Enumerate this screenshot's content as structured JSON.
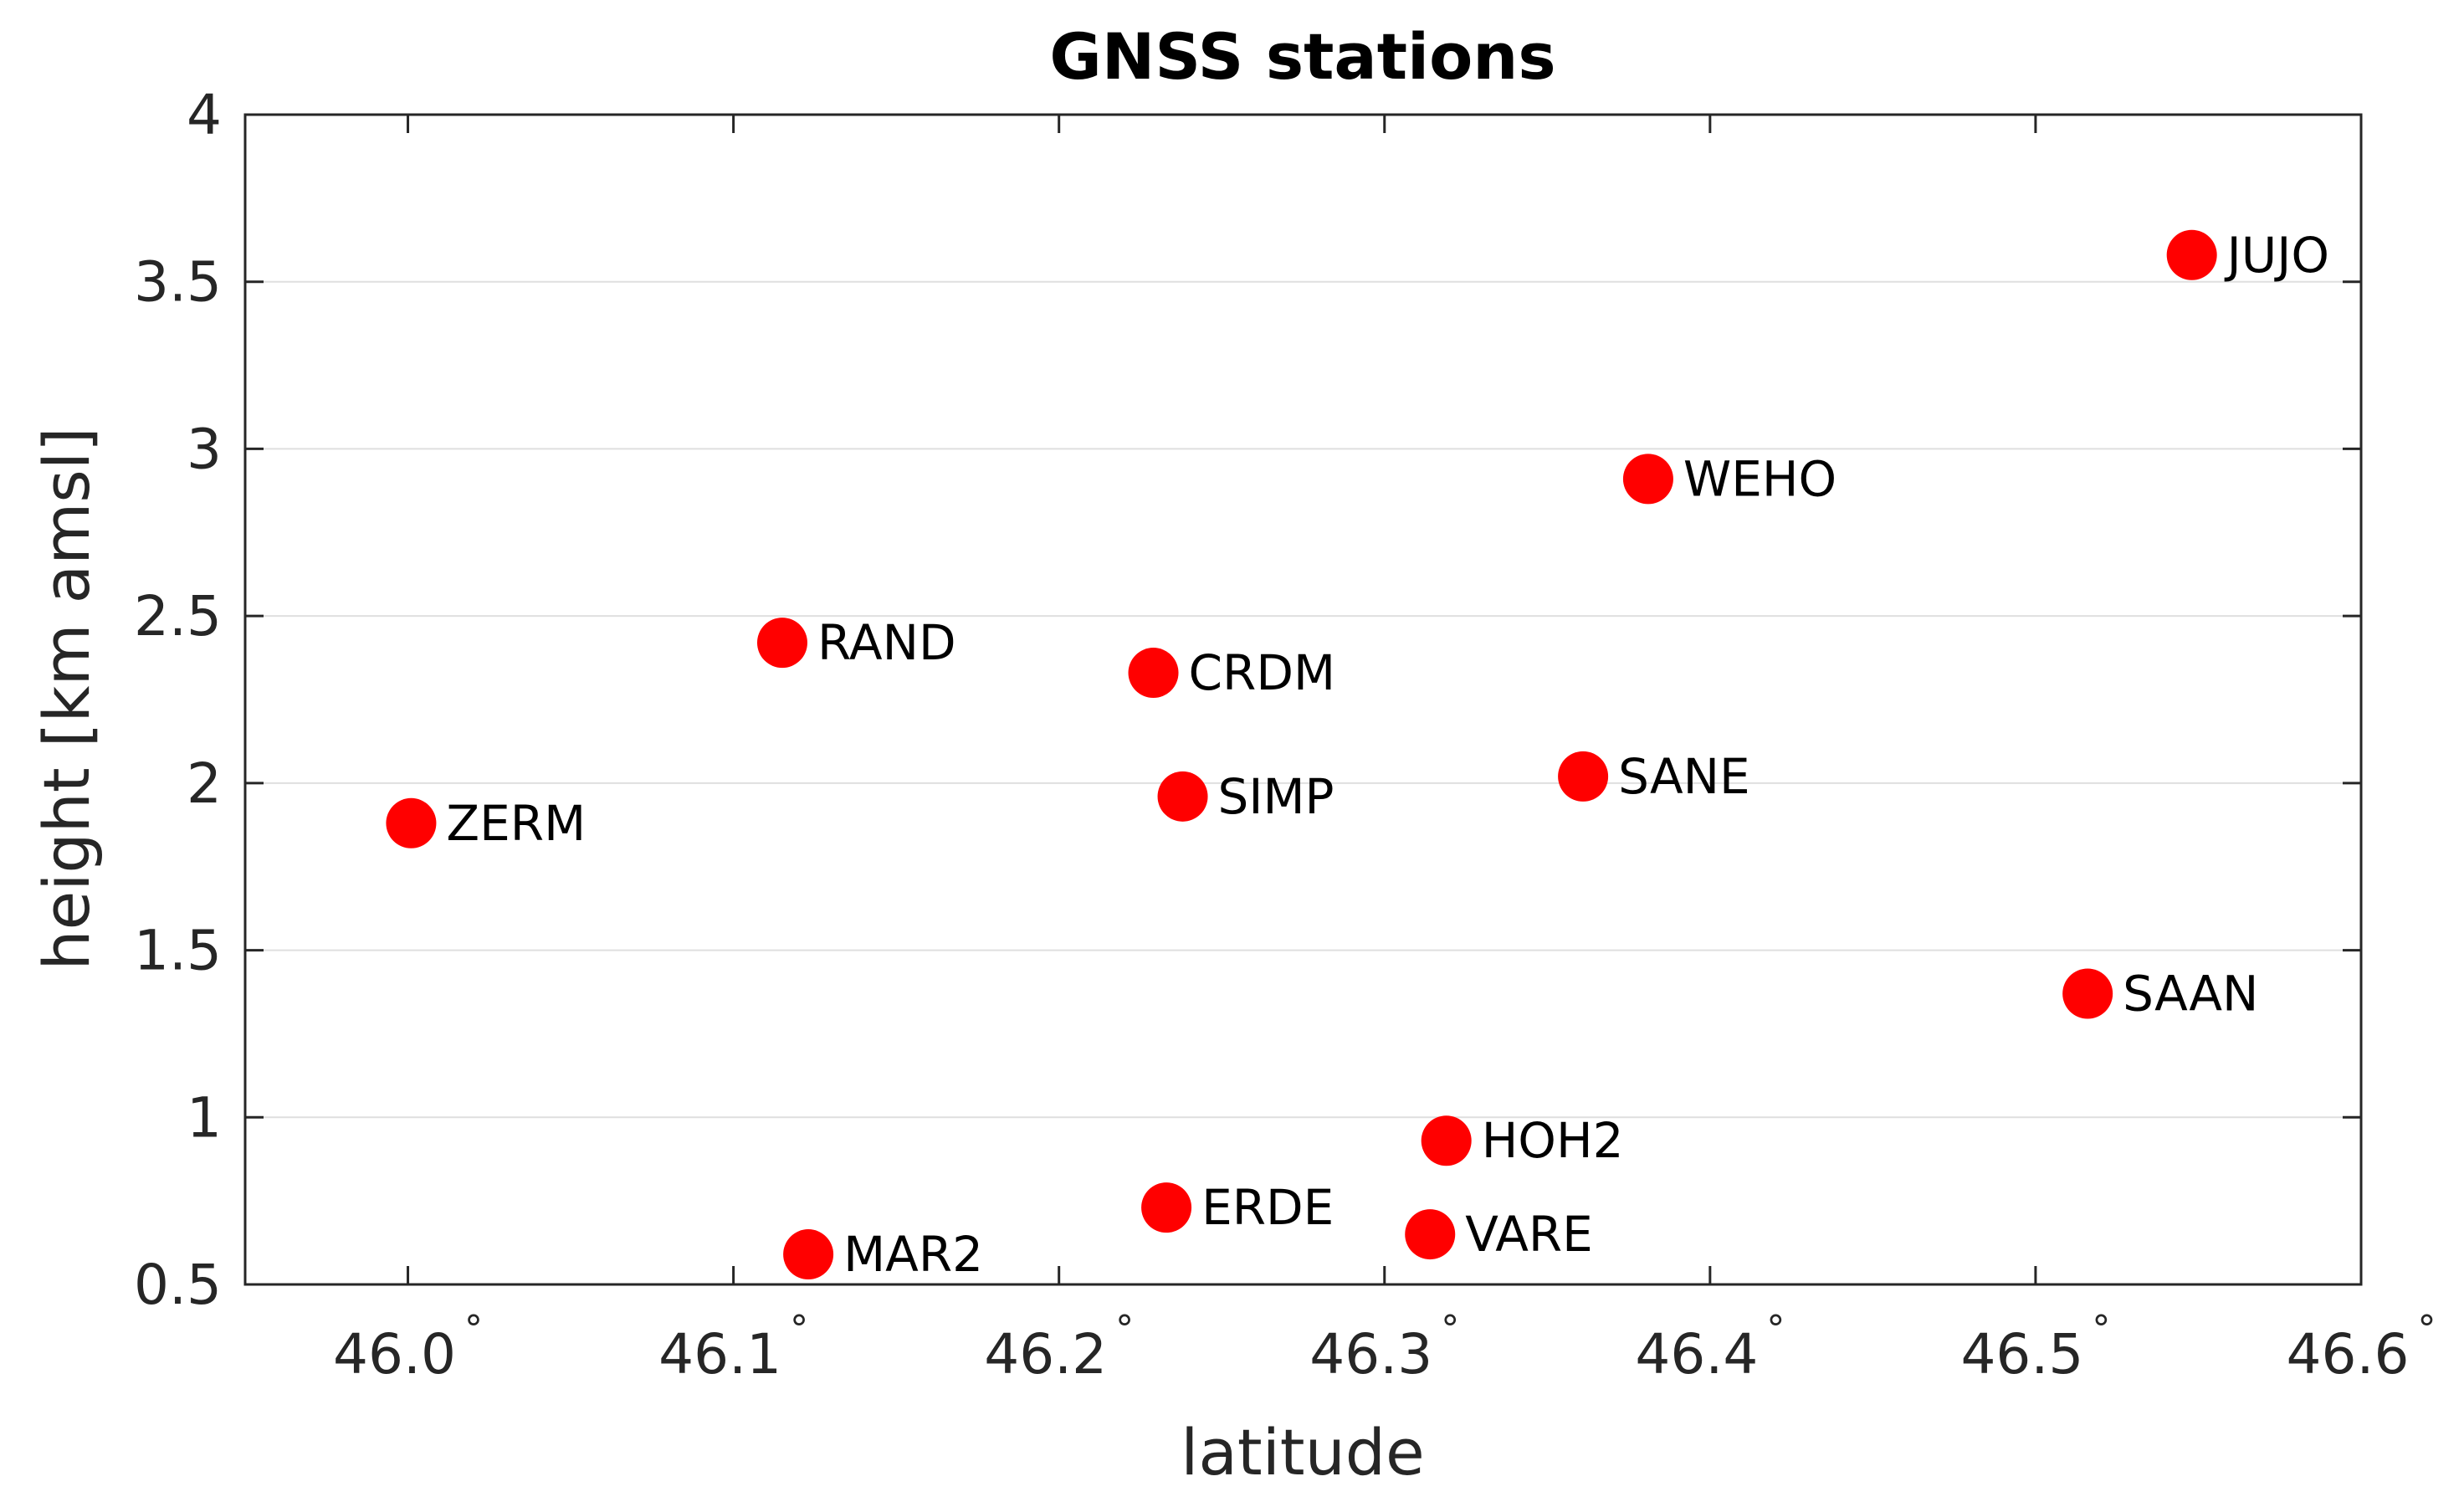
{
  "chart_data": {
    "type": "scatter",
    "title": "GNSS stations",
    "xlabel": "latitude",
    "ylabel": "height [km amsl]",
    "xlim": [
      45.95,
      46.6
    ],
    "ylim": [
      0.5,
      4
    ],
    "xticks": [
      {
        "value": 46.0,
        "label": "46.0"
      },
      {
        "value": 46.1,
        "label": "46.1"
      },
      {
        "value": 46.2,
        "label": "46.2"
      },
      {
        "value": 46.3,
        "label": "46.3"
      },
      {
        "value": 46.4,
        "label": "46.4"
      },
      {
        "value": 46.5,
        "label": "46.5"
      },
      {
        "value": 46.6,
        "label": "46.6"
      }
    ],
    "xtick_suffix": "°",
    "yticks": [
      {
        "value": 0.5,
        "label": "0.5"
      },
      {
        "value": 1,
        "label": "1"
      },
      {
        "value": 1.5,
        "label": "1.5"
      },
      {
        "value": 2,
        "label": "2"
      },
      {
        "value": 2.5,
        "label": "2.5"
      },
      {
        "value": 3,
        "label": "3"
      },
      {
        "value": 3.5,
        "label": "3.5"
      },
      {
        "value": 4,
        "label": "4"
      }
    ],
    "grid": "horizontal",
    "marker_color": "#ff0000",
    "points": [
      {
        "name": "ZERM",
        "x": 46.001,
        "y": 1.88
      },
      {
        "name": "RAND",
        "x": 46.115,
        "y": 2.42
      },
      {
        "name": "MAR2",
        "x": 46.123,
        "y": 0.59
      },
      {
        "name": "CRDM",
        "x": 46.229,
        "y": 2.33
      },
      {
        "name": "SIMP",
        "x": 46.238,
        "y": 1.96
      },
      {
        "name": "ERDE",
        "x": 46.233,
        "y": 0.73
      },
      {
        "name": "HOH2",
        "x": 46.319,
        "y": 0.93
      },
      {
        "name": "VARE",
        "x": 46.314,
        "y": 0.65
      },
      {
        "name": "SANE",
        "x": 46.361,
        "y": 2.02
      },
      {
        "name": "WEHO",
        "x": 46.381,
        "y": 2.91
      },
      {
        "name": "SAAN",
        "x": 46.516,
        "y": 1.37
      },
      {
        "name": "JUJO",
        "x": 46.548,
        "y": 3.58
      }
    ]
  }
}
